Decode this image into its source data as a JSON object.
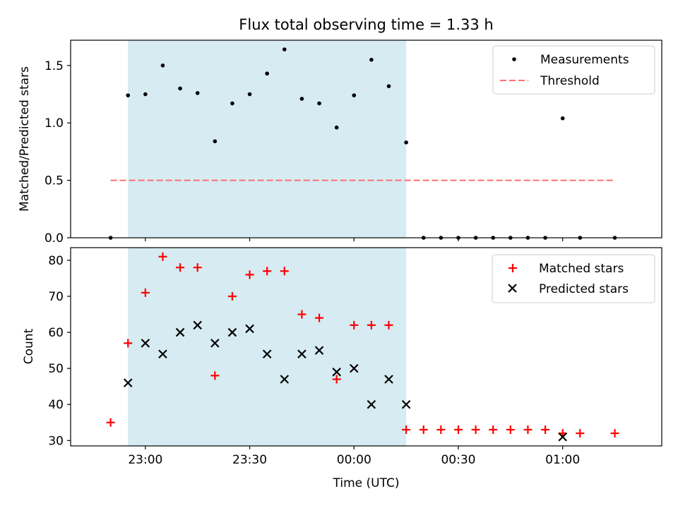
{
  "chart_data": [
    {
      "type": "scatter",
      "title": "Flux total observing time = 1.33 h",
      "xlabel": "",
      "ylabel": "Matched/Predicted stars",
      "ylim": [
        0,
        1.72
      ],
      "yticks": [
        0.0,
        0.5,
        1.0,
        1.5
      ],
      "ytick_labels": [
        "0.0",
        "0.5",
        "1.0",
        "1.5"
      ],
      "xlim_minutes": [
        -21.5,
        148.5
      ],
      "shaded_region": {
        "from": "22:55",
        "to": "00:15",
        "color": "#add8e6"
      },
      "legend": {
        "position": "top-right"
      },
      "series": [
        {
          "name": "Measurements",
          "marker": "dot",
          "color": "#000000",
          "x": [
            "22:50",
            "22:55",
            "23:00",
            "23:05",
            "23:10",
            "23:15",
            "23:20",
            "23:25",
            "23:30",
            "23:35",
            "23:40",
            "23:45",
            "23:50",
            "23:55",
            "00:00",
            "00:05",
            "00:10",
            "00:15",
            "00:20",
            "00:25",
            "00:30",
            "00:35",
            "00:40",
            "00:45",
            "00:50",
            "00:55",
            "01:00",
            "01:05",
            "01:15"
          ],
          "y": [
            0,
            1.24,
            1.25,
            1.5,
            1.3,
            1.26,
            0.84,
            1.17,
            1.25,
            1.43,
            1.64,
            1.21,
            1.17,
            0.96,
            1.24,
            1.55,
            1.32,
            0.83,
            0,
            0,
            0,
            0,
            0,
            0,
            0,
            0,
            1.04,
            0,
            0
          ]
        },
        {
          "name": "Threshold",
          "line": "dashed",
          "color": "#ff7070",
          "x": [
            "22:50",
            "01:15"
          ],
          "y": [
            0.5,
            0.5
          ]
        }
      ]
    },
    {
      "type": "scatter",
      "title": "",
      "xlabel": "Time (UTC)",
      "ylabel": "Count",
      "ylim": [
        28.5,
        83.5
      ],
      "yticks": [
        30,
        40,
        50,
        60,
        70,
        80
      ],
      "ytick_labels": [
        "30",
        "40",
        "50",
        "60",
        "70",
        "80"
      ],
      "xticks": [
        "23:00",
        "23:30",
        "00:00",
        "00:30",
        "01:00"
      ],
      "shaded_region": {
        "from": "22:55",
        "to": "00:15",
        "color": "#add8e6"
      },
      "legend": {
        "position": "top-right"
      },
      "series": [
        {
          "name": "Matched stars",
          "marker": "plus",
          "color": "#ff0000",
          "x": [
            "22:50",
            "22:55",
            "23:00",
            "23:05",
            "23:10",
            "23:15",
            "23:20",
            "23:25",
            "23:30",
            "23:35",
            "23:40",
            "23:45",
            "23:50",
            "23:55",
            "00:00",
            "00:05",
            "00:10",
            "00:15",
            "00:20",
            "00:25",
            "00:30",
            "00:35",
            "00:40",
            "00:45",
            "00:50",
            "00:55",
            "01:00",
            "01:05",
            "01:15"
          ],
          "y": [
            35,
            57,
            71,
            81,
            78,
            78,
            48,
            70,
            76,
            77,
            77,
            65,
            64,
            47,
            62,
            62,
            62,
            33,
            33,
            33,
            33,
            33,
            33,
            33,
            33,
            33,
            32,
            32,
            32
          ]
        },
        {
          "name": "Predicted stars",
          "marker": "x",
          "color": "#000000",
          "x": [
            "22:55",
            "23:00",
            "23:05",
            "23:10",
            "23:15",
            "23:20",
            "23:25",
            "23:30",
            "23:35",
            "23:40",
            "23:45",
            "23:50",
            "23:55",
            "00:00",
            "00:05",
            "00:10",
            "00:15",
            "01:00"
          ],
          "y": [
            46,
            57,
            54,
            60,
            62,
            57,
            60,
            61,
            54,
            47,
            54,
            55,
            49,
            50,
            40,
            47,
            40,
            31
          ]
        }
      ]
    }
  ]
}
